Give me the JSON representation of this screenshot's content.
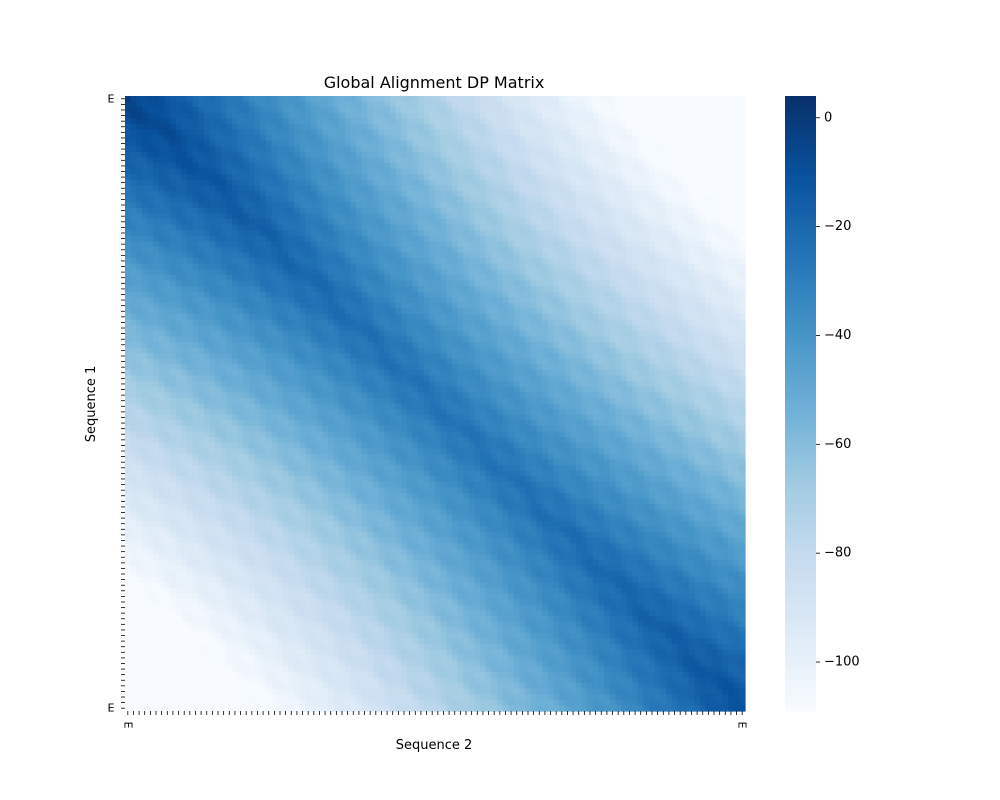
{
  "chart_data": {
    "type": "heatmap",
    "title": "Global Alignment DP Matrix",
    "xlabel": "Sequence 2",
    "ylabel": "Sequence 1",
    "colormap": "Blues",
    "vmin": -109,
    "vmax": 4,
    "colorbar_ticks": [
      0,
      -20,
      -40,
      -60,
      -80,
      -100
    ],
    "colorbar_tick_labels": [
      "0",
      "−20",
      "−40",
      "−60",
      "−80",
      "−100"
    ],
    "rows": 110,
    "cols": 110,
    "gap_penalty": -1,
    "corner_values": {
      "top_left": 0,
      "top_right": -109,
      "bottom_left": -109,
      "bottom_right": -10
    },
    "band_minimum": -22,
    "x_tick_labels_first": [
      "E"
    ],
    "x_tick_labels_last": [
      "E"
    ],
    "y_tick_labels_first": [
      "E"
    ],
    "y_tick_labels_last": [
      "E"
    ]
  }
}
